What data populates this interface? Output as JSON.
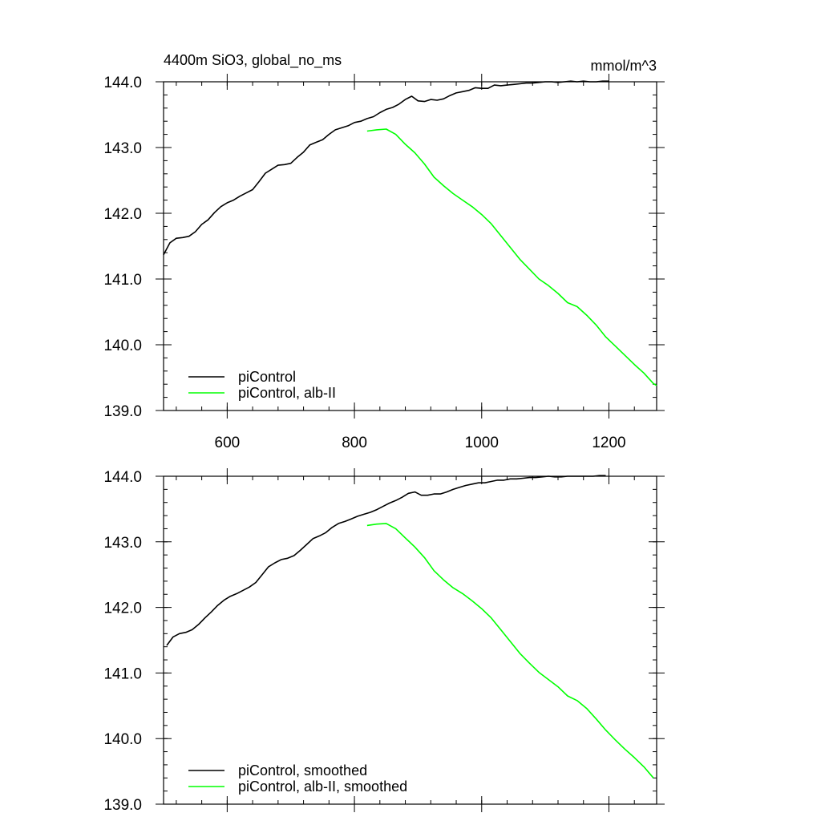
{
  "colors": {
    "piControl": "#000000",
    "alb_II": "#00ff00"
  },
  "chart_data": [
    {
      "type": "line",
      "title_left": "4400m SiO3, global_no_ms",
      "title_right": "mmol/m^3",
      "xlim": [
        500,
        1275
      ],
      "ylim": [
        139.0,
        144.0
      ],
      "x_ticks": [
        600,
        800,
        1000,
        1200
      ],
      "x_tick_labels": [
        "600",
        "800",
        "1000",
        "1200"
      ],
      "y_ticks": [
        139.0,
        140.0,
        141.0,
        142.0,
        143.0,
        144.0
      ],
      "y_tick_labels": [
        "139.0",
        "140.0",
        "141.0",
        "142.0",
        "143.0",
        "144.0"
      ],
      "grid": false,
      "legend_position": "bottom-left",
      "series": [
        {
          "name": "piControl",
          "color": "#000000",
          "x": [
            500,
            510,
            520,
            530,
            540,
            550,
            560,
            570,
            580,
            590,
            600,
            610,
            620,
            630,
            640,
            650,
            660,
            670,
            680,
            690,
            700,
            710,
            720,
            730,
            740,
            750,
            760,
            770,
            780,
            790,
            800,
            810,
            820,
            830,
            840,
            850,
            860,
            870,
            880,
            890,
            900,
            910,
            920,
            930,
            940,
            950,
            960,
            970,
            980,
            990,
            1000,
            1010,
            1020,
            1030,
            1040,
            1050,
            1060,
            1070,
            1080,
            1090,
            1100,
            1110,
            1120,
            1130,
            1140,
            1150,
            1160,
            1170,
            1180,
            1190,
            1200
          ],
          "y": [
            141.37,
            141.55,
            141.62,
            141.63,
            141.65,
            141.72,
            141.83,
            141.9,
            142.01,
            142.1,
            142.16,
            142.2,
            142.26,
            142.31,
            142.36,
            142.48,
            142.61,
            142.67,
            142.73,
            142.74,
            142.76,
            142.85,
            142.93,
            143.04,
            143.08,
            143.12,
            143.2,
            143.27,
            143.3,
            143.33,
            143.38,
            143.4,
            143.44,
            143.47,
            143.53,
            143.58,
            143.61,
            143.66,
            143.73,
            143.78,
            143.71,
            143.7,
            143.73,
            143.72,
            143.74,
            143.79,
            143.83,
            143.85,
            143.87,
            143.91,
            143.9,
            143.9,
            143.95,
            143.94,
            143.95,
            143.96,
            143.97,
            143.98,
            143.98,
            143.99,
            144.0,
            144.0,
            143.99,
            144.0,
            144.01,
            144.0,
            144.01,
            144.0,
            144.0,
            144.01,
            144.01
          ]
        },
        {
          "name": "piControl, alb-II",
          "color": "#00ff00",
          "x": [
            820,
            835,
            850,
            865,
            880,
            895,
            910,
            925,
            940,
            955,
            970,
            985,
            1000,
            1015,
            1030,
            1045,
            1060,
            1075,
            1090,
            1105,
            1120,
            1135,
            1150,
            1165,
            1180,
            1195,
            1210,
            1225,
            1240,
            1255,
            1270,
            1275
          ],
          "y": [
            143.25,
            143.27,
            143.28,
            143.2,
            143.05,
            142.92,
            142.75,
            142.55,
            142.42,
            142.3,
            142.2,
            142.1,
            141.98,
            141.84,
            141.66,
            141.48,
            141.3,
            141.15,
            141.0,
            140.9,
            140.78,
            140.64,
            140.58,
            140.45,
            140.3,
            140.12,
            139.98,
            139.84,
            139.7,
            139.57,
            139.41,
            139.38
          ]
        }
      ]
    },
    {
      "type": "line",
      "xlim": [
        500,
        1275
      ],
      "ylim": [
        139.0,
        144.0
      ],
      "x_ticks": [
        600,
        800,
        1000,
        1200
      ],
      "x_tick_labels": [],
      "y_ticks": [
        139.0,
        140.0,
        141.0,
        142.0,
        143.0,
        144.0
      ],
      "y_tick_labels": [
        "139.0",
        "140.0",
        "141.0",
        "142.0",
        "143.0",
        "144.0"
      ],
      "grid": false,
      "legend_position": "bottom-left",
      "series": [
        {
          "name": "piControl, smoothed",
          "color": "#000000",
          "x": [
            505,
            515,
            525,
            535,
            545,
            555,
            565,
            575,
            585,
            595,
            605,
            615,
            625,
            635,
            645,
            655,
            665,
            675,
            685,
            695,
            705,
            715,
            725,
            735,
            745,
            755,
            765,
            775,
            785,
            795,
            805,
            815,
            825,
            835,
            845,
            855,
            865,
            875,
            885,
            895,
            905,
            915,
            925,
            935,
            945,
            955,
            965,
            975,
            985,
            995,
            1005,
            1015,
            1025,
            1035,
            1045,
            1055,
            1065,
            1075,
            1085,
            1095,
            1105,
            1115,
            1125,
            1135,
            1145,
            1155,
            1165,
            1175,
            1185,
            1195
          ],
          "y": [
            141.42,
            141.55,
            141.6,
            141.62,
            141.66,
            141.74,
            141.84,
            141.93,
            142.03,
            142.11,
            142.17,
            142.21,
            142.26,
            142.31,
            142.38,
            142.5,
            142.62,
            142.68,
            142.73,
            142.75,
            142.79,
            142.87,
            142.96,
            143.05,
            143.09,
            143.14,
            143.22,
            143.28,
            143.31,
            143.35,
            143.39,
            143.42,
            143.45,
            143.49,
            143.54,
            143.59,
            143.63,
            143.68,
            143.74,
            143.76,
            143.71,
            143.71,
            143.73,
            143.73,
            143.76,
            143.8,
            143.83,
            143.86,
            143.88,
            143.9,
            143.9,
            143.92,
            143.94,
            143.94,
            143.96,
            143.96,
            143.97,
            143.98,
            143.98,
            143.99,
            144.0,
            143.99,
            143.99,
            144.0,
            144.0,
            144.0,
            144.0,
            144.0,
            144.01,
            144.01
          ]
        },
        {
          "name": "piControl, alb-II, smoothed",
          "color": "#00ff00",
          "x": [
            820,
            835,
            850,
            865,
            880,
            895,
            910,
            925,
            940,
            955,
            970,
            985,
            1000,
            1015,
            1030,
            1045,
            1060,
            1075,
            1090,
            1105,
            1120,
            1135,
            1150,
            1165,
            1180,
            1195,
            1210,
            1225,
            1240,
            1255,
            1270
          ],
          "y": [
            143.25,
            143.27,
            143.28,
            143.2,
            143.06,
            142.92,
            142.76,
            142.56,
            142.42,
            142.3,
            142.21,
            142.1,
            141.98,
            141.84,
            141.66,
            141.48,
            141.3,
            141.15,
            141.01,
            140.9,
            140.79,
            140.65,
            140.58,
            140.46,
            140.3,
            140.13,
            139.98,
            139.84,
            139.71,
            139.57,
            139.4
          ]
        }
      ]
    }
  ]
}
